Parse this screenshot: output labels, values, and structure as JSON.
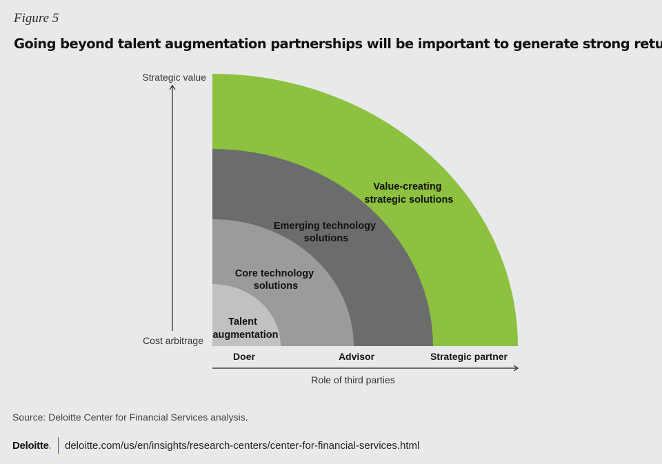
{
  "figure_label": "Figure 5",
  "title": "Going beyond talent augmentation partnerships will be important to generate strong returns",
  "colors": {
    "green": "#8dc13f",
    "dark_gray": "#6b6d6d",
    "mid_gray": "#9a9c9c",
    "light_gray": "#c0c1c1",
    "brand_dot": "#86bc25"
  },
  "diagram": {
    "y_axis_top": "Strategic value",
    "y_axis_bottom": "Cost arbitrage",
    "x_axis_title": "Role of third parties",
    "x_labels": [
      "Doer",
      "Advisor",
      "Strategic partner"
    ],
    "rings": [
      {
        "line1": "Talent",
        "line2": "augmentation"
      },
      {
        "line1": "Core technology",
        "line2": "solutions"
      },
      {
        "line1": "Emerging technology",
        "line2": "solutions"
      },
      {
        "line1": "Value-creating",
        "line2": "strategic solutions"
      }
    ]
  },
  "source": "Source: Deloitte Center for Financial Services analysis.",
  "footer": {
    "brand": "Deloitte",
    "brand_dot": ".",
    "url": "deloitte.com/us/en/insights/research-centers/center-for-financial-services.html"
  }
}
